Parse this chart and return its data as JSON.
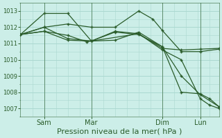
{
  "title": "Pression niveau de la mer( hPa )",
  "bg_color": "#cceee8",
  "grid_color": "#aad8d0",
  "line_color": "#2a5c2a",
  "ylim": [
    1006.5,
    1013.5
  ],
  "yticks": [
    1007,
    1008,
    1009,
    1010,
    1011,
    1012,
    1013
  ],
  "xtick_labels": [
    "Sam",
    "Mar",
    "Dim",
    "Lun"
  ],
  "xtick_positions": [
    10,
    30,
    60,
    76
  ],
  "xlim": [
    0,
    84
  ],
  "vlines": [
    10,
    30,
    60,
    76
  ],
  "series": [
    {
      "x": [
        0,
        10,
        20,
        30,
        40,
        50,
        60,
        68,
        76,
        84
      ],
      "y": [
        1011.55,
        1012.85,
        1012.85,
        1011.15,
        1011.2,
        1011.7,
        1010.8,
        1009.0,
        1007.85,
        1007.1
      ]
    },
    {
      "x": [
        0,
        10,
        20,
        30,
        40,
        50,
        56,
        60,
        68,
        76,
        84
      ],
      "y": [
        1011.55,
        1012.0,
        1012.2,
        1012.0,
        1012.0,
        1013.0,
        1012.5,
        1011.8,
        1010.5,
        1010.5,
        1010.65
      ]
    },
    {
      "x": [
        0,
        10,
        20,
        28,
        30,
        40,
        50,
        60,
        68,
        76,
        84
      ],
      "y": [
        1011.55,
        1011.75,
        1011.5,
        1011.1,
        1011.15,
        1011.75,
        1011.6,
        1010.7,
        1010.6,
        1010.65,
        1010.7
      ]
    },
    {
      "x": [
        0,
        10,
        20,
        30,
        50,
        60,
        68,
        76,
        80,
        84
      ],
      "y": [
        1011.55,
        1012.0,
        1011.3,
        1011.15,
        1011.6,
        1010.6,
        1010.0,
        1007.6,
        1007.2,
        1007.0
      ]
    },
    {
      "x": [
        0,
        10,
        20,
        30,
        40,
        50,
        60,
        68,
        76,
        80,
        84
      ],
      "y": [
        1011.55,
        1011.75,
        1011.2,
        1011.15,
        1011.7,
        1011.55,
        1010.8,
        1008.0,
        1007.9,
        1007.6,
        1007.1
      ]
    }
  ],
  "ylabel_fontsize": 6,
  "xlabel_fontsize": 8,
  "tick_fontsize": 7
}
